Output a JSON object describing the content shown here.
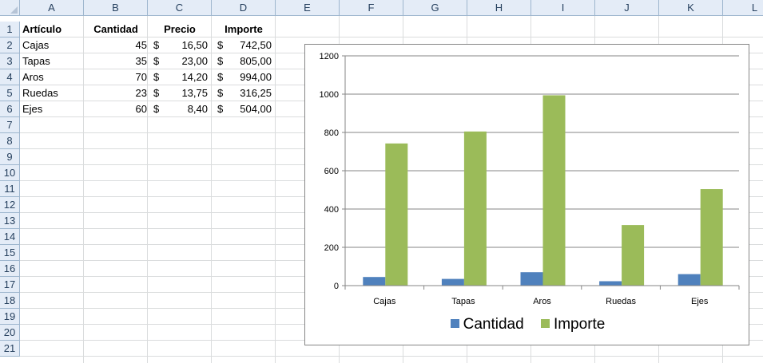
{
  "columns": [
    "A",
    "B",
    "C",
    "D",
    "E",
    "F",
    "G",
    "H",
    "I",
    "J",
    "K",
    "L"
  ],
  "rows": [
    "1",
    "2",
    "3",
    "4",
    "5",
    "6",
    "7",
    "8",
    "9",
    "10",
    "11",
    "12",
    "13",
    "14",
    "15",
    "16",
    "17",
    "18",
    "19",
    "20",
    "21"
  ],
  "table": {
    "headers": [
      "Artículo",
      "Cantidad",
      "Precio",
      "Importe"
    ],
    "currency": "$",
    "items": [
      {
        "articulo": "Cajas",
        "cantidad": "45",
        "precio": "16,50",
        "importe": "742,50"
      },
      {
        "articulo": "Tapas",
        "cantidad": "35",
        "precio": "23,00",
        "importe": "805,00"
      },
      {
        "articulo": "Aros",
        "cantidad": "70",
        "precio": "14,20",
        "importe": "994,00"
      },
      {
        "articulo": "Ruedas",
        "cantidad": "23",
        "precio": "13,75",
        "importe": "316,25"
      },
      {
        "articulo": "Ejes",
        "cantidad": "60",
        "precio": "8,40",
        "importe": "504,00"
      }
    ]
  },
  "chart_data": {
    "type": "bar",
    "categories": [
      "Cajas",
      "Tapas",
      "Aros",
      "Ruedas",
      "Ejes"
    ],
    "series": [
      {
        "name": "Cantidad",
        "values": [
          45,
          35,
          70,
          23,
          60
        ],
        "color": "#4f81bd"
      },
      {
        "name": "Importe",
        "values": [
          742.5,
          805,
          994,
          316.25,
          504
        ],
        "color": "#9bbb59"
      }
    ],
    "ylim": [
      0,
      1200
    ],
    "yticks": [
      "0",
      "200",
      "400",
      "600",
      "800",
      "1000",
      "1200"
    ],
    "grid": true,
    "legend": "bottom",
    "title": "",
    "xlabel": "",
    "ylabel": ""
  }
}
